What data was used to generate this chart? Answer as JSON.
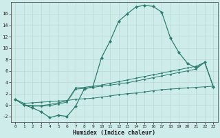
{
  "xlabel": "Humidex (Indice chaleur)",
  "background_color": "#cdecea",
  "line_color": "#2e7d6e",
  "x_values": [
    0,
    1,
    2,
    3,
    4,
    5,
    6,
    7,
    8,
    9,
    10,
    11,
    12,
    13,
    14,
    15,
    16,
    17,
    18,
    19,
    20,
    21,
    22,
    23
  ],
  "humidex_curve": [
    1.0,
    0.0,
    -0.5,
    -1.2,
    -2.2,
    -1.8,
    -2.0,
    -0.2,
    2.8,
    3.2,
    8.3,
    11.2,
    14.7,
    16.0,
    17.2,
    17.5,
    17.3,
    16.3,
    11.8,
    9.2,
    7.3,
    6.5,
    7.5,
    3.2
  ],
  "line2": [
    1.0,
    0.0,
    -0.2,
    -0.2,
    -0.1,
    0.2,
    0.5,
    2.8,
    2.9,
    3.1,
    3.3,
    3.5,
    3.7,
    3.9,
    4.2,
    4.5,
    4.8,
    5.1,
    5.4,
    5.7,
    6.0,
    6.3,
    7.5,
    3.2
  ],
  "line3": [
    1.0,
    0.0,
    -0.1,
    -0.1,
    0.1,
    0.4,
    0.7,
    3.0,
    3.1,
    3.3,
    3.5,
    3.8,
    4.1,
    4.4,
    4.7,
    5.0,
    5.3,
    5.6,
    5.9,
    6.2,
    6.5,
    6.8,
    7.5,
    3.2
  ],
  "line4": [
    1.0,
    0.3,
    0.4,
    0.5,
    0.6,
    0.7,
    0.8,
    1.0,
    1.1,
    1.2,
    1.4,
    1.6,
    1.8,
    2.0,
    2.1,
    2.3,
    2.5,
    2.7,
    2.8,
    2.9,
    3.0,
    3.1,
    3.2,
    3.3
  ],
  "ylim": [
    -3.0,
    18.0
  ],
  "xlim": [
    -0.5,
    23.5
  ],
  "yticks": [
    -2,
    0,
    2,
    4,
    6,
    8,
    10,
    12,
    14,
    16
  ],
  "xticks": [
    0,
    1,
    2,
    3,
    4,
    5,
    6,
    7,
    8,
    9,
    10,
    11,
    12,
    13,
    14,
    15,
    16,
    17,
    18,
    19,
    20,
    21,
    22,
    23
  ]
}
